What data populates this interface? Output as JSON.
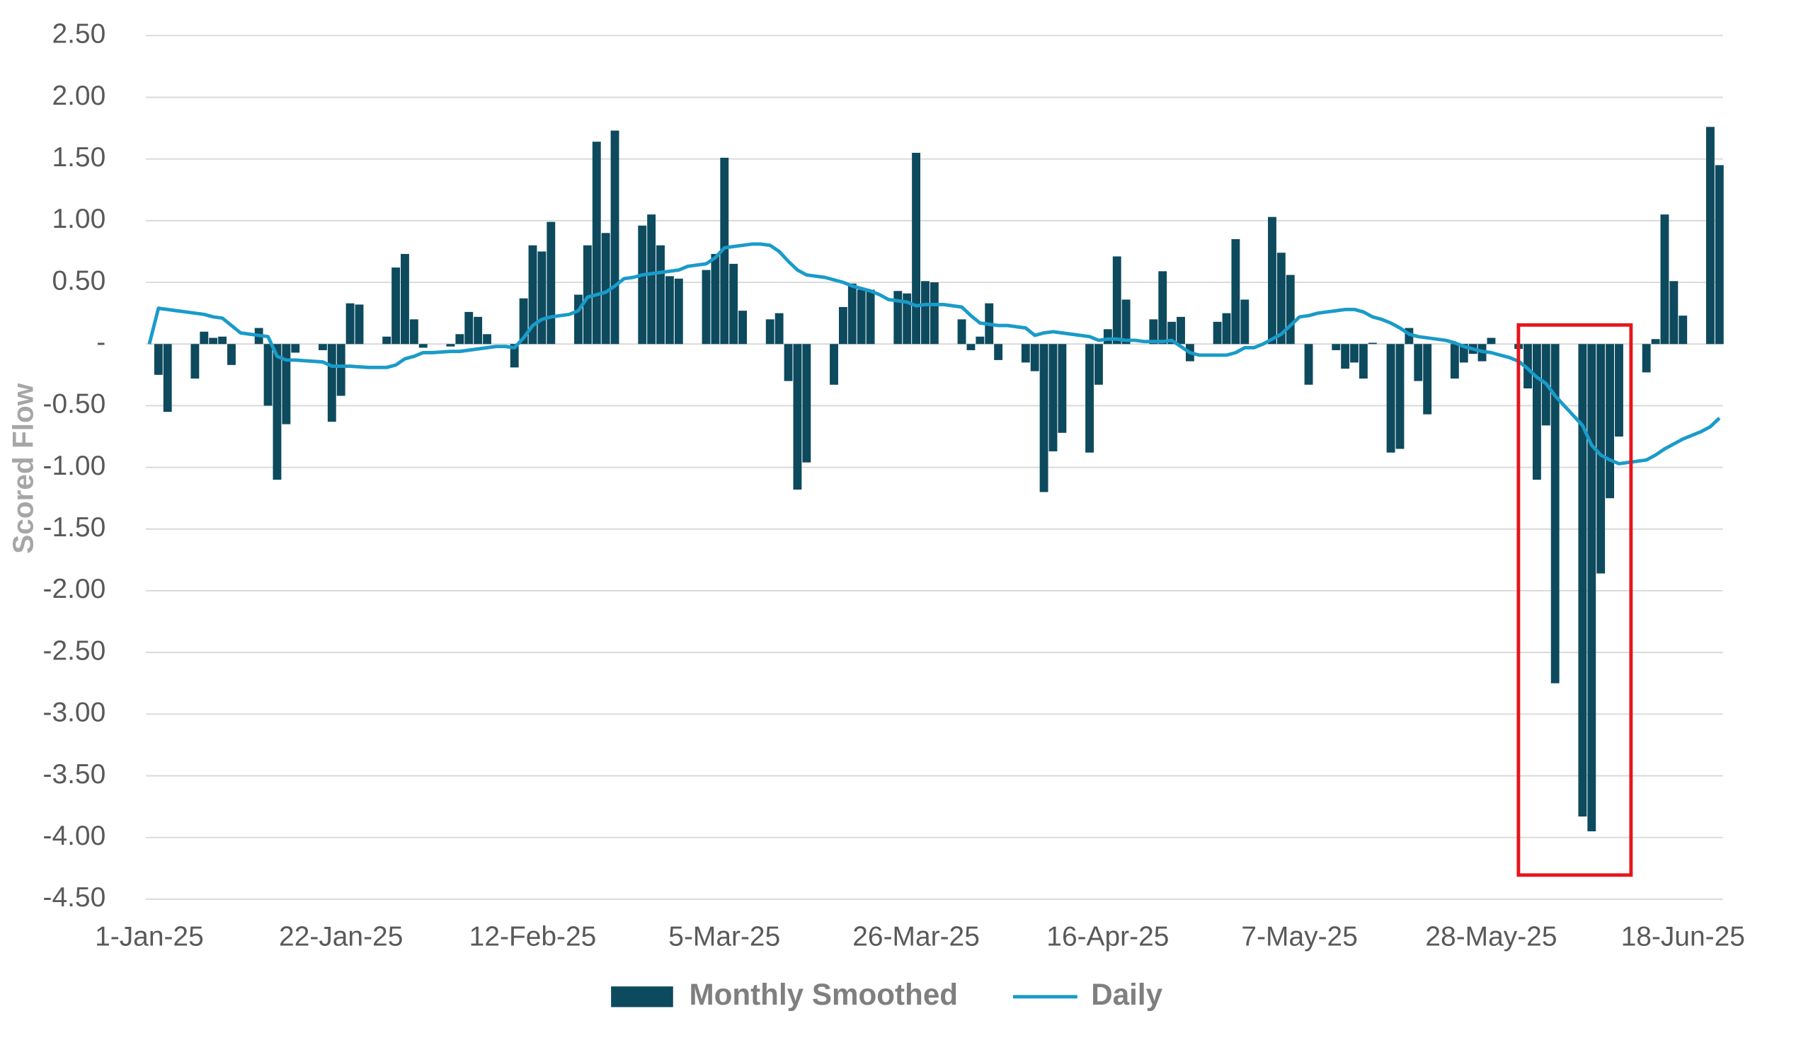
{
  "chart_data": {
    "type": "combo",
    "y_label": "Scored Flow",
    "categories": [
      "1-Jan-25",
      null,
      null,
      null,
      null,
      null,
      null,
      null,
      null,
      null,
      null,
      null,
      null,
      null,
      null,
      null,
      null,
      null,
      null,
      null,
      null,
      "22-Jan-25",
      null,
      null,
      null,
      null,
      null,
      null,
      null,
      null,
      null,
      null,
      null,
      null,
      null,
      null,
      null,
      null,
      null,
      null,
      null,
      null,
      "12-Feb-25",
      null,
      null,
      null,
      null,
      null,
      null,
      null,
      null,
      null,
      null,
      null,
      null,
      null,
      null,
      null,
      null,
      null,
      null,
      null,
      null,
      "5-Mar-25",
      null,
      null,
      null,
      null,
      null,
      null,
      null,
      null,
      null,
      null,
      null,
      null,
      null,
      null,
      null,
      null,
      null,
      null,
      null,
      null,
      "26-Mar-25",
      null,
      null,
      null,
      null,
      null,
      null,
      null,
      null,
      null,
      null,
      null,
      null,
      null,
      null,
      null,
      null,
      null,
      null,
      null,
      null,
      "16-Apr-25",
      null,
      null,
      null,
      null,
      null,
      null,
      null,
      null,
      null,
      null,
      null,
      null,
      null,
      null,
      null,
      null,
      null,
      null,
      null,
      null,
      "7-May-25",
      null,
      null,
      null,
      null,
      null,
      null,
      null,
      null,
      null,
      null,
      null,
      null,
      null,
      null,
      null,
      null,
      null,
      null,
      null,
      null,
      "28-May-25",
      null,
      null,
      null,
      null,
      null,
      null,
      null,
      null,
      null,
      null,
      null,
      null,
      null,
      null,
      null,
      null,
      null,
      null,
      null,
      null,
      "18-Jun-25",
      null,
      null,
      null,
      null
    ],
    "series": [
      {
        "name": "Monthly Smoothed",
        "type": "bar",
        "color": "#0d4a5e",
        "values": [
          null,
          -0.25,
          -0.55,
          null,
          null,
          -0.28,
          0.1,
          0.05,
          0.06,
          -0.17,
          null,
          null,
          0.13,
          -0.5,
          -1.1,
          -0.65,
          -0.07,
          null,
          null,
          -0.05,
          -0.63,
          -0.42,
          0.33,
          0.32,
          null,
          null,
          0.06,
          0.62,
          0.73,
          0.2,
          -0.03,
          null,
          null,
          -0.02,
          0.08,
          0.26,
          0.22,
          0.08,
          null,
          null,
          -0.19,
          0.37,
          0.8,
          0.75,
          0.99,
          null,
          null,
          0.4,
          0.8,
          1.64,
          0.9,
          1.73,
          null,
          null,
          0.96,
          1.05,
          0.8,
          0.55,
          0.53,
          null,
          null,
          0.6,
          0.73,
          1.51,
          0.65,
          0.27,
          null,
          null,
          0.2,
          0.25,
          -0.3,
          -1.18,
          -0.96,
          null,
          null,
          -0.33,
          0.3,
          0.49,
          0.44,
          0.44,
          null,
          null,
          0.43,
          0.41,
          1.55,
          0.51,
          0.5,
          null,
          null,
          0.2,
          -0.05,
          0.06,
          0.33,
          -0.13,
          null,
          null,
          -0.15,
          -0.22,
          -1.2,
          -0.87,
          -0.72,
          null,
          null,
          -0.88,
          -0.33,
          0.12,
          0.71,
          0.36,
          null,
          null,
          0.2,
          0.59,
          0.18,
          0.22,
          -0.14,
          null,
          null,
          0.18,
          0.25,
          0.85,
          0.36,
          null,
          null,
          1.03,
          0.74,
          0.56,
          null,
          -0.33,
          null,
          null,
          -0.05,
          -0.2,
          -0.15,
          -0.28,
          0.01,
          null,
          -0.88,
          -0.85,
          0.13,
          -0.3,
          -0.57,
          null,
          null,
          -0.28,
          -0.15,
          -0.08,
          -0.14,
          0.05,
          null,
          null,
          -0.04,
          -0.36,
          -1.1,
          -0.66,
          -2.75,
          null,
          null,
          -3.83,
          -3.95,
          -1.86,
          -1.25,
          -0.75,
          null,
          null,
          -0.23,
          0.04,
          1.05,
          0.51,
          0.23,
          null,
          null,
          1.76,
          1.45
        ]
      },
      {
        "name": "Daily",
        "type": "line",
        "color": "#1a9bc9",
        "values": [
          0,
          0.29,
          0.28,
          0.27,
          0.26,
          0.25,
          0.24,
          0.22,
          0.21,
          0.15,
          0.09,
          0.08,
          0.07,
          0.06,
          -0.1,
          -0.13,
          -0.13,
          -0.135,
          -0.14,
          -0.145,
          -0.18,
          -0.18,
          -0.18,
          -0.185,
          -0.19,
          -0.19,
          -0.19,
          -0.17,
          -0.12,
          -0.1,
          -0.07,
          -0.07,
          -0.065,
          -0.06,
          -0.06,
          -0.05,
          -0.04,
          -0.03,
          -0.02,
          -0.02,
          -0.03,
          0.05,
          0.15,
          0.2,
          0.22,
          0.23,
          0.24,
          0.27,
          0.38,
          0.4,
          0.42,
          0.47,
          0.53,
          0.54,
          0.56,
          0.57,
          0.58,
          0.59,
          0.6,
          0.63,
          0.64,
          0.65,
          0.7,
          0.78,
          0.79,
          0.8,
          0.81,
          0.81,
          0.8,
          0.75,
          0.67,
          0.6,
          0.56,
          0.55,
          0.54,
          0.52,
          0.5,
          0.47,
          0.45,
          0.43,
          0.4,
          0.36,
          0.35,
          0.34,
          0.31,
          0.32,
          0.32,
          0.32,
          0.31,
          0.3,
          0.23,
          0.17,
          0.16,
          0.15,
          0.15,
          0.14,
          0.13,
          0.07,
          0.09,
          0.1,
          0.09,
          0.08,
          0.07,
          0.06,
          0.03,
          0.04,
          0.04,
          0.03,
          0.03,
          0.02,
          0.02,
          0.02,
          0.03,
          -0.02,
          -0.07,
          -0.09,
          -0.09,
          -0.09,
          -0.09,
          -0.07,
          -0.03,
          -0.03,
          0,
          0.04,
          0.08,
          0.15,
          0.22,
          0.23,
          0.25,
          0.26,
          0.27,
          0.28,
          0.28,
          0.26,
          0.22,
          0.2,
          0.17,
          0.13,
          0.08,
          0.06,
          0.05,
          0.04,
          0.03,
          0.01,
          -0.02,
          -0.04,
          -0.06,
          -0.07,
          -0.09,
          -0.11,
          -0.14,
          -0.2,
          -0.27,
          -0.32,
          -0.42,
          -0.5,
          -0.58,
          -0.66,
          -0.82,
          -0.9,
          -0.94,
          -0.97,
          -0.96,
          -0.95,
          -0.94,
          -0.9,
          -0.85,
          -0.81,
          -0.77,
          -0.74,
          -0.71,
          -0.67,
          -0.6
        ]
      }
    ],
    "ylim": [
      -4.5,
      2.5
    ],
    "yticks": [
      {
        "value": 2.5,
        "label": "2.50"
      },
      {
        "value": 2,
        "label": "2.00"
      },
      {
        "value": 1.5,
        "label": "1.50"
      },
      {
        "value": 1,
        "label": "1.00"
      },
      {
        "value": 0.5,
        "label": "0.50"
      },
      {
        "value": 0,
        "label": "-"
      },
      {
        "value": -0.5,
        "label": "-0.50"
      },
      {
        "value": -1,
        "label": "-1.00"
      },
      {
        "value": -1.5,
        "label": "-1.50"
      },
      {
        "value": -2,
        "label": "-2.00"
      },
      {
        "value": -2.5,
        "label": "-2.50"
      },
      {
        "value": -3,
        "label": "-3.00"
      },
      {
        "value": -3.5,
        "label": "-3.50"
      },
      {
        "value": -4,
        "label": "-4.00"
      },
      {
        "value": -4.5,
        "label": "-4.50"
      }
    ],
    "grid": true,
    "legend": "bottom"
  }
}
